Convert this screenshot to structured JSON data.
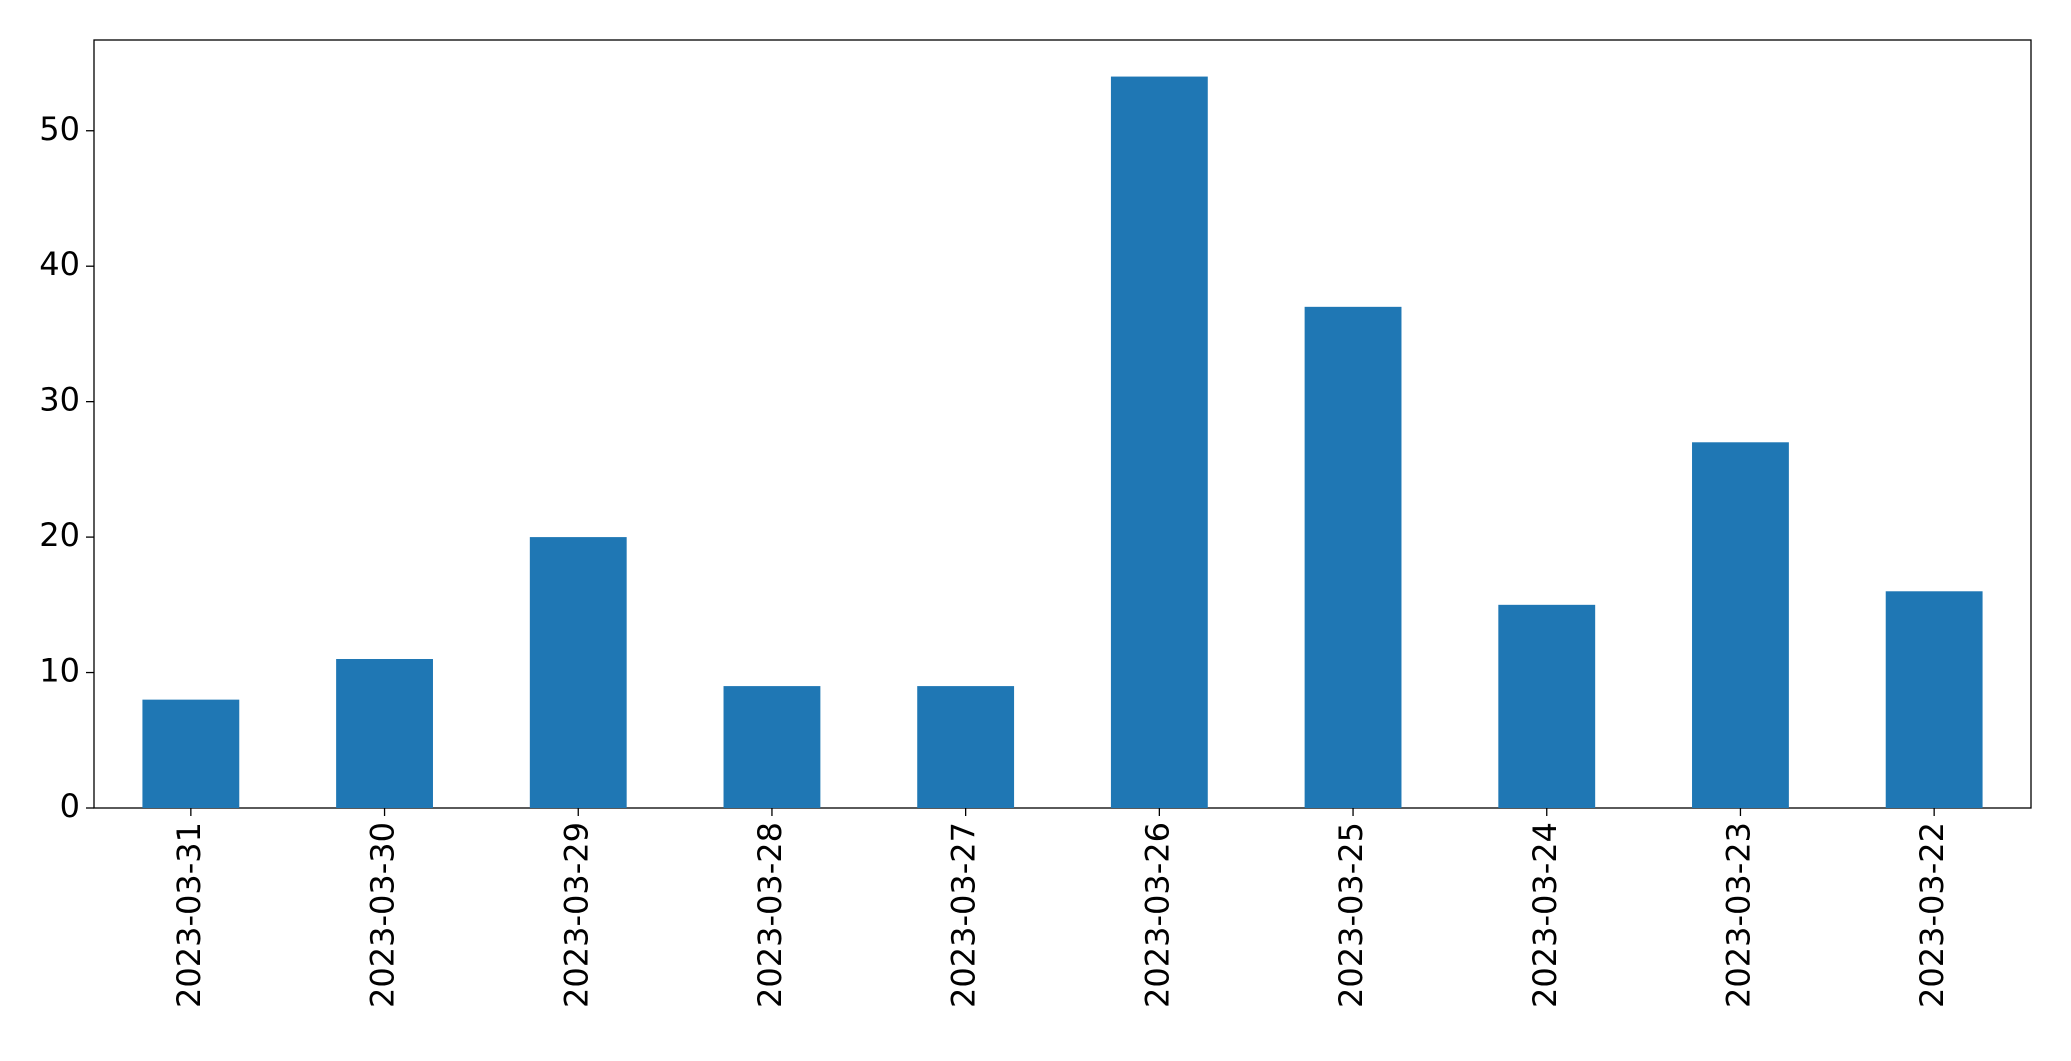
{
  "chart_data": {
    "type": "bar",
    "categories": [
      "2023-03-31",
      "2023-03-30",
      "2023-03-29",
      "2023-03-28",
      "2023-03-27",
      "2023-03-26",
      "2023-03-25",
      "2023-03-24",
      "2023-03-23",
      "2023-03-22"
    ],
    "values": [
      8,
      11,
      20,
      9,
      9,
      54,
      37,
      15,
      27,
      16
    ],
    "color": "#1f77b4",
    "ylim": [
      0,
      56.7
    ],
    "yticks": [
      0,
      10,
      20,
      30,
      40,
      50
    ],
    "grid": false
  }
}
